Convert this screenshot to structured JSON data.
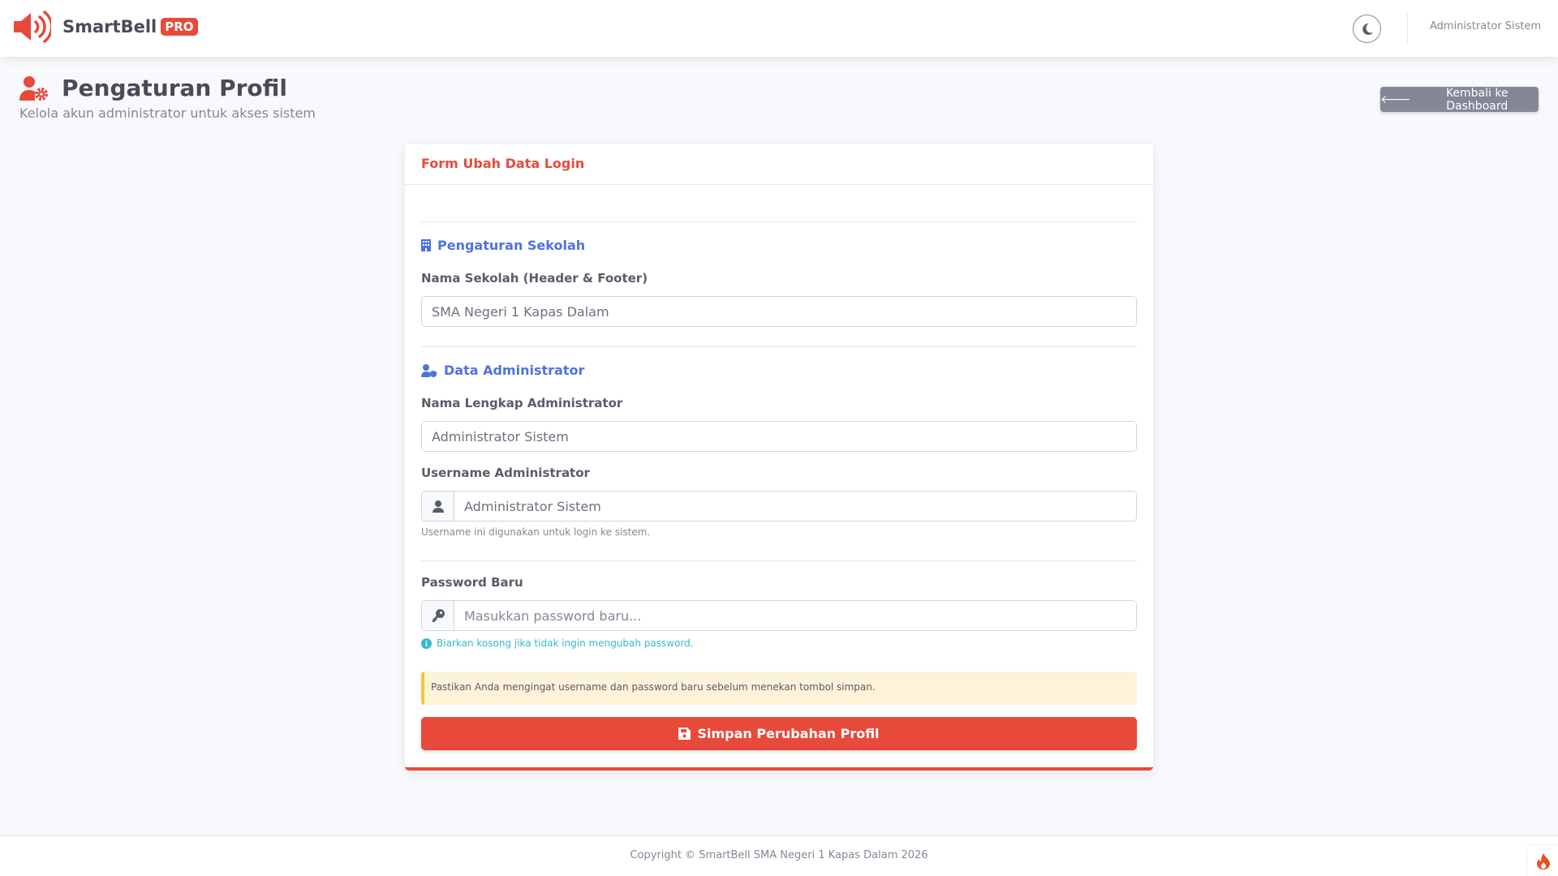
{
  "app": {
    "brand": "SmartBell",
    "badge": "PRO",
    "user": "Administrator Sistem"
  },
  "page": {
    "title": "Pengaturan Profil",
    "subtitle": "Kelola akun administrator untuk akses sistem",
    "back_label": "Kembali ke Dashboard"
  },
  "form": {
    "title": "Form Ubah Data Login",
    "school_section": "Pengaturan Sekolah",
    "school_label": "Nama Sekolah (Header & Footer)",
    "school_value": "SMA Negeri 1 Kapas Dalam",
    "admin_section": "Data Administrator",
    "fullname_label": "Nama Lengkap Administrator",
    "fullname_value": "Administrator Sistem",
    "username_label": "Username Administrator",
    "username_value": "Administrator Sistem",
    "username_help": "Username ini digunakan untuk login ke sistem.",
    "password_label": "Password Baru",
    "password_placeholder": "Masukkan password baru...",
    "password_info": "Biarkan kosong jika tidak ingin mengubah password.",
    "alert": "Pastikan Anda mengingat username dan password baru sebelum menekan tombol simpan.",
    "save_label": "Simpan Perubahan Profil"
  },
  "footer": {
    "copyright": "Copyright © SmartBell SMA Negeri 1 Kapas Dalam 2026"
  },
  "colors": {
    "primary": "#e74a3b",
    "accent": "#4e73df",
    "info": "#36b9cc",
    "warning": "#f6c23e"
  }
}
